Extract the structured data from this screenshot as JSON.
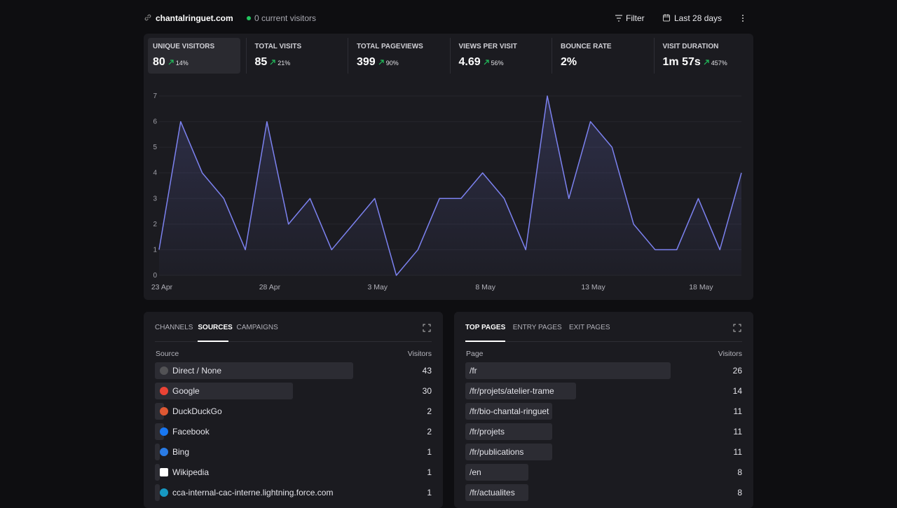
{
  "header": {
    "site": "chantalringuet.com",
    "visitors": "0 current visitors",
    "filter": "Filter",
    "period": "Last 28 days"
  },
  "stats": [
    {
      "label": "UNIQUE VISITORS",
      "value": "80",
      "change": "14%"
    },
    {
      "label": "TOTAL VISITS",
      "value": "85",
      "change": "21%"
    },
    {
      "label": "TOTAL PAGEVIEWS",
      "value": "399",
      "change": "90%"
    },
    {
      "label": "VIEWS PER VISIT",
      "value": "4.69",
      "change": "56%"
    },
    {
      "label": "BOUNCE RATE",
      "value": "2%"
    },
    {
      "label": "VISIT DURATION",
      "value": "1m 57s",
      "change": "457%"
    }
  ],
  "chart_data": {
    "type": "line",
    "categories": [
      "23 Apr",
      null,
      null,
      null,
      null,
      "28 Apr",
      null,
      null,
      null,
      null,
      "3 May",
      null,
      null,
      null,
      null,
      "8 May",
      null,
      null,
      null,
      null,
      "13 May",
      null,
      null,
      null,
      null,
      "18 May",
      null,
      null
    ],
    "values": [
      1,
      6,
      4,
      3,
      1,
      6,
      2,
      3,
      1,
      2,
      3,
      0,
      1,
      3,
      3,
      4,
      3,
      1,
      7,
      3,
      6,
      5,
      2,
      1,
      1,
      3,
      1,
      4
    ],
    "color": "#7c82f0",
    "ylim": [
      0,
      7
    ],
    "yticks": [
      0,
      1,
      2,
      3,
      4,
      5,
      6,
      7
    ],
    "grid": true
  },
  "sources": {
    "tabs": [
      "CHANNELS",
      "SOURCES",
      "CAMPAIGNS"
    ],
    "columns": [
      "Source",
      "Visitors"
    ],
    "rows": [
      {
        "name": "Direct / None",
        "visitors": 43
      },
      {
        "name": "Google",
        "visitors": 30
      },
      {
        "name": "DuckDuckGo",
        "visitors": 2
      },
      {
        "name": "Facebook",
        "visitors": 2
      },
      {
        "name": "Bing",
        "visitors": 1
      },
      {
        "name": "Wikipedia",
        "visitors": 1
      },
      {
        "name": "cca-internal-cac-interne.lightning.force.com",
        "visitors": 1
      }
    ]
  },
  "pages": {
    "tabs": [
      "TOP PAGES",
      "ENTRY PAGES",
      "EXIT PAGES"
    ],
    "columns": [
      "Page",
      "Visitors"
    ],
    "rows": [
      {
        "name": "/fr",
        "visitors": 26
      },
      {
        "name": "/fr/projets/atelier-trame",
        "visitors": 14
      },
      {
        "name": "/fr/bio-chantal-ringuet",
        "visitors": 11
      },
      {
        "name": "/fr/projets",
        "visitors": 11
      },
      {
        "name": "/fr/publications",
        "visitors": 11
      },
      {
        "name": "/en",
        "visitors": 8
      },
      {
        "name": "/fr/actualites",
        "visitors": 8
      }
    ]
  }
}
